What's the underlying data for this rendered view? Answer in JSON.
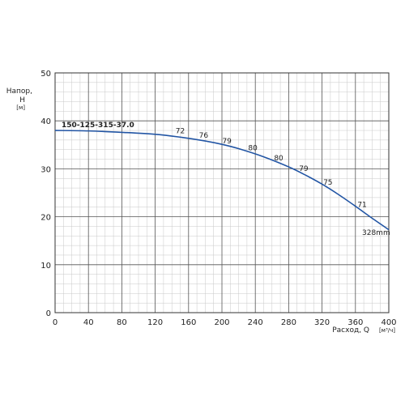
{
  "chart_data": {
    "type": "line",
    "y_axis": {
      "label_line1": "Напор,",
      "label_line2": "H",
      "unit": "[м]",
      "min": 0,
      "max": 50,
      "major_ticks": [
        0,
        10,
        20,
        30,
        40,
        50
      ],
      "minor_step": 2
    },
    "x_axis": {
      "label": "Расход, Q",
      "unit": "[м³/ч]",
      "min": 0,
      "max": 400,
      "major_ticks": [
        0,
        40,
        80,
        120,
        160,
        200,
        240,
        280,
        320,
        360,
        400
      ],
      "minor_step": 10
    },
    "grid": true,
    "series": [
      {
        "name": "150-125-315-37.0",
        "impeller": "328mm",
        "color": "#2255a4",
        "x": [
          0,
          40,
          80,
          120,
          150,
          180,
          200,
          220,
          250,
          280,
          300,
          320,
          340,
          360,
          380,
          400
        ],
        "y": [
          38.0,
          37.9,
          37.6,
          37.2,
          36.6,
          35.8,
          35.1,
          34.2,
          32.5,
          30.4,
          28.7,
          26.8,
          24.6,
          22.2,
          19.7,
          17.3
        ]
      }
    ],
    "efficiency_labels": [
      {
        "text": "72",
        "x": 150,
        "y": 36.7
      },
      {
        "text": "76",
        "x": 178,
        "y": 35.8
      },
      {
        "text": "79",
        "x": 206,
        "y": 34.6
      },
      {
        "text": "80",
        "x": 237,
        "y": 33.2
      },
      {
        "text": "80",
        "x": 268,
        "y": 31.1
      },
      {
        "text": "79",
        "x": 298,
        "y": 28.9
      },
      {
        "text": "75",
        "x": 327,
        "y": 26.0
      },
      {
        "text": "71",
        "x": 368,
        "y": 21.4
      }
    ]
  }
}
